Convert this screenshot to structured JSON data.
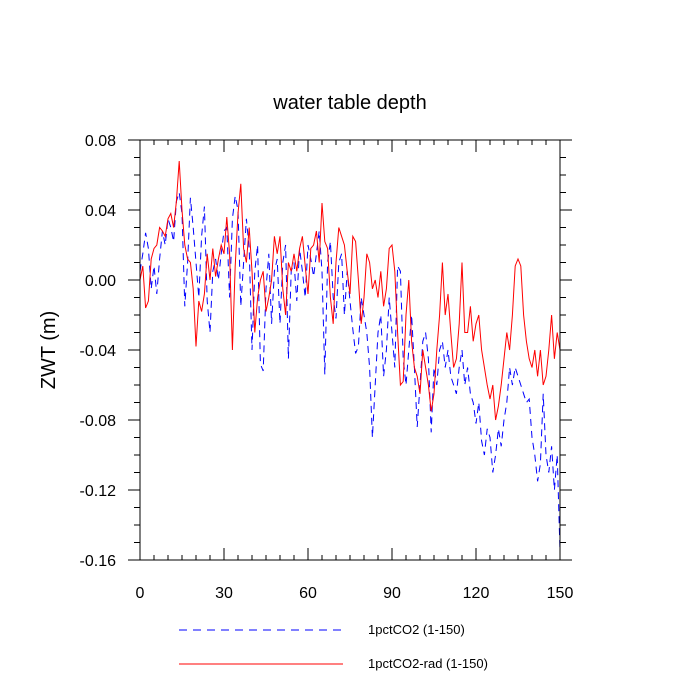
{
  "chart_data": {
    "type": "line",
    "title": "water table depth",
    "xlabel": "",
    "ylabel": "ZWT  (m)",
    "xlim": [
      0,
      150
    ],
    "ylim": [
      -0.16,
      0.08
    ],
    "xticks": [
      "0",
      "30",
      "60",
      "90",
      "120",
      "150"
    ],
    "yticks": [
      "0.08",
      "0.04",
      "0.00",
      "-0.04",
      "-0.08",
      "-0.12",
      "-0.16"
    ],
    "grid": false,
    "legend_position": "bottom",
    "series": [
      {
        "name": "1pctCO2 (1-150)",
        "color": "#0000ff",
        "style": "dashed",
        "x": [
          0,
          1,
          2,
          3,
          4,
          5,
          6,
          7,
          8,
          9,
          10,
          11,
          12,
          13,
          14,
          15,
          16,
          17,
          18,
          19,
          20,
          21,
          22,
          23,
          24,
          25,
          26,
          27,
          28,
          29,
          30,
          31,
          32,
          33,
          34,
          35,
          36,
          37,
          38,
          39,
          40,
          41,
          42,
          43,
          44,
          45,
          46,
          47,
          48,
          49,
          50,
          51,
          52,
          53,
          54,
          55,
          56,
          57,
          58,
          59,
          60,
          61,
          62,
          63,
          64,
          65,
          66,
          67,
          68,
          69,
          70,
          71,
          72,
          73,
          74,
          75,
          76,
          77,
          78,
          79,
          80,
          81,
          82,
          83,
          84,
          85,
          86,
          87,
          88,
          89,
          90,
          91,
          92,
          93,
          94,
          95,
          96,
          97,
          98,
          99,
          100,
          101,
          102,
          103,
          104,
          105,
          106,
          107,
          108,
          109,
          110,
          111,
          112,
          113,
          114,
          115,
          116,
          117,
          118,
          119,
          120,
          121,
          122,
          123,
          124,
          125,
          126,
          127,
          128,
          129,
          130,
          131,
          132,
          133,
          134,
          135,
          136,
          137,
          138,
          139,
          140,
          141,
          142,
          143,
          144,
          145,
          146,
          147,
          148,
          149,
          150
        ],
        "y": [
          0.005,
          0.015,
          0.027,
          0.018,
          -0.005,
          0.008,
          -0.008,
          0.012,
          0.028,
          0.02,
          0.035,
          0.03,
          0.022,
          0.045,
          0.05,
          0.038,
          -0.015,
          0.01,
          0.047,
          0.03,
          0.01,
          -0.01,
          0.025,
          0.042,
          -0.012,
          -0.03,
          0.005,
          0.012,
          0.0,
          0.015,
          0.028,
          0.03,
          -0.01,
          0.035,
          0.048,
          0.04,
          -0.015,
          0.01,
          0.035,
          0.018,
          -0.04,
          0.005,
          0.02,
          -0.048,
          -0.052,
          -0.005,
          0.015,
          -0.025,
          0.005,
          0.012,
          -0.025,
          0.01,
          0.02,
          -0.045,
          0.005,
          0.01,
          -0.012,
          0.018,
          0.005,
          -0.01,
          0.02,
          0.012,
          0.002,
          0.015,
          0.028,
          0.005,
          -0.054,
          0.01,
          0.022,
          -0.01,
          -0.022,
          0.01,
          0.015,
          -0.02,
          0.005,
          -0.012,
          -0.028,
          -0.042,
          -0.038,
          -0.01,
          -0.02,
          -0.03,
          -0.05,
          -0.09,
          -0.06,
          -0.03,
          -0.02,
          -0.055,
          -0.04,
          -0.01,
          -0.03,
          -0.05,
          0.008,
          0.005,
          -0.045,
          -0.06,
          -0.04,
          -0.02,
          -0.05,
          -0.084,
          -0.06,
          -0.035,
          -0.03,
          -0.045,
          -0.087,
          -0.05,
          -0.06,
          -0.04,
          -0.035,
          -0.05,
          -0.04,
          -0.055,
          -0.06,
          -0.065,
          -0.05,
          -0.04,
          -0.06,
          -0.05,
          -0.065,
          -0.07,
          -0.082,
          -0.07,
          -0.092,
          -0.1,
          -0.085,
          -0.09,
          -0.11,
          -0.1,
          -0.085,
          -0.095,
          -0.08,
          -0.07,
          -0.05,
          -0.06,
          -0.05,
          -0.055,
          -0.06,
          -0.065,
          -0.07,
          -0.068,
          -0.09,
          -0.1,
          -0.115,
          -0.105,
          -0.065,
          -0.1,
          -0.11,
          -0.095,
          -0.12,
          -0.1,
          -0.155
        ]
      },
      {
        "name": "1pctCO2-rad (1-150)",
        "color": "#ff0000",
        "style": "solid",
        "x": [
          0,
          1,
          2,
          3,
          4,
          5,
          6,
          7,
          8,
          9,
          10,
          11,
          12,
          13,
          14,
          15,
          16,
          17,
          18,
          19,
          20,
          21,
          22,
          23,
          24,
          25,
          26,
          27,
          28,
          29,
          30,
          31,
          32,
          33,
          34,
          35,
          36,
          37,
          38,
          39,
          40,
          41,
          42,
          43,
          44,
          45,
          46,
          47,
          48,
          49,
          50,
          51,
          52,
          53,
          54,
          55,
          56,
          57,
          58,
          59,
          60,
          61,
          62,
          63,
          64,
          65,
          66,
          67,
          68,
          69,
          70,
          71,
          72,
          73,
          74,
          75,
          76,
          77,
          78,
          79,
          80,
          81,
          82,
          83,
          84,
          85,
          86,
          87,
          88,
          89,
          90,
          91,
          92,
          93,
          94,
          95,
          96,
          97,
          98,
          99,
          100,
          101,
          102,
          103,
          104,
          105,
          106,
          107,
          108,
          109,
          110,
          111,
          112,
          113,
          114,
          115,
          116,
          117,
          118,
          119,
          120,
          121,
          122,
          123,
          124,
          125,
          126,
          127,
          128,
          129,
          130,
          131,
          132,
          133,
          134,
          135,
          136,
          137,
          138,
          139,
          140,
          141,
          142,
          143,
          144,
          145,
          146,
          147,
          148,
          149,
          150
        ],
        "y": [
          0.0,
          0.008,
          -0.016,
          -0.012,
          0.012,
          0.018,
          0.02,
          0.03,
          0.028,
          0.025,
          0.035,
          0.038,
          0.03,
          0.045,
          0.068,
          0.04,
          0.02,
          0.012,
          0.01,
          -0.005,
          -0.038,
          -0.012,
          -0.018,
          -0.008,
          0.015,
          0.0,
          0.018,
          0.002,
          0.012,
          0.02,
          0.015,
          0.036,
          0.015,
          -0.04,
          0.008,
          0.038,
          0.055,
          0.018,
          0.01,
          0.03,
          0.005,
          -0.03,
          -0.01,
          0.0,
          0.005,
          -0.018,
          -0.01,
          0.0,
          0.025,
          0.015,
          0.025,
          -0.005,
          -0.02,
          0.01,
          0.005,
          0.015,
          0.005,
          0.018,
          0.025,
          0.008,
          -0.008,
          0.018,
          0.02,
          0.028,
          0.01,
          0.044,
          0.022,
          0.018,
          -0.01,
          -0.025,
          0.01,
          0.03,
          0.025,
          0.02,
          0.005,
          -0.008,
          0.025,
          0.022,
          0.0,
          -0.025,
          -0.01,
          0.015,
          0.01,
          -0.005,
          0.0,
          -0.01,
          0.005,
          -0.015,
          -0.005,
          0.018,
          0.02,
          0.005,
          -0.03,
          -0.06,
          -0.058,
          -0.02,
          0.0,
          -0.035,
          -0.05,
          -0.055,
          -0.065,
          -0.04,
          -0.05,
          -0.06,
          -0.075,
          -0.065,
          -0.04,
          -0.02,
          0.01,
          -0.02,
          -0.008,
          -0.03,
          -0.05,
          -0.045,
          -0.025,
          0.01,
          -0.03,
          -0.03,
          -0.015,
          -0.035,
          -0.025,
          -0.02,
          -0.04,
          -0.05,
          -0.06,
          -0.068,
          -0.06,
          -0.08,
          -0.072,
          -0.06,
          -0.045,
          -0.03,
          -0.04,
          -0.02,
          0.008,
          0.012,
          0.008,
          -0.02,
          -0.035,
          -0.045,
          -0.05,
          -0.04,
          -0.055,
          -0.04,
          -0.06,
          -0.055,
          -0.04,
          -0.02,
          -0.045,
          -0.03,
          -0.04
        ]
      }
    ]
  }
}
